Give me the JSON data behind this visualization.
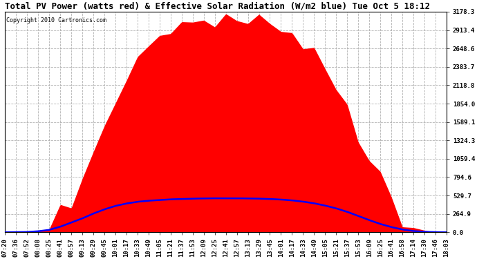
{
  "title": "Total PV Power (watts red) & Effective Solar Radiation (W/m2 blue) Tue Oct 5 18:12",
  "copyright_text": "Copyright 2010 Cartronics.com",
  "y_max": 3178.3,
  "y_ticks": [
    0.0,
    264.9,
    529.7,
    794.6,
    1059.4,
    1324.3,
    1589.1,
    1854.0,
    2118.8,
    2383.7,
    2648.6,
    2913.4,
    3178.3
  ],
  "x_labels": [
    "07:20",
    "07:36",
    "07:52",
    "08:08",
    "08:25",
    "08:41",
    "08:57",
    "09:13",
    "09:29",
    "09:45",
    "10:01",
    "10:17",
    "10:33",
    "10:49",
    "11:05",
    "11:21",
    "11:37",
    "11:53",
    "12:09",
    "12:25",
    "12:41",
    "12:57",
    "13:13",
    "13:29",
    "13:45",
    "14:01",
    "14:17",
    "14:33",
    "14:49",
    "15:05",
    "15:21",
    "15:37",
    "15:53",
    "16:09",
    "16:25",
    "16:41",
    "16:58",
    "17:14",
    "17:30",
    "17:46",
    "18:03"
  ],
  "pv_power": [
    0,
    5,
    10,
    20,
    50,
    150,
    350,
    700,
    1100,
    1500,
    1900,
    2200,
    2500,
    2700,
    2850,
    2950,
    3000,
    3020,
    3040,
    3050,
    3050,
    3040,
    3030,
    3020,
    3010,
    2980,
    2900,
    2780,
    2600,
    2380,
    2100,
    1780,
    1400,
    1000,
    650,
    350,
    150,
    60,
    20,
    5,
    0
  ],
  "solar_rad_scaled": [
    0,
    2,
    5,
    15,
    35,
    80,
    140,
    200,
    270,
    330,
    380,
    415,
    440,
    455,
    465,
    475,
    480,
    485,
    488,
    490,
    490,
    490,
    488,
    485,
    480,
    472,
    460,
    442,
    418,
    385,
    345,
    295,
    235,
    175,
    120,
    75,
    40,
    18,
    7,
    2,
    0
  ],
  "bg_color": "#ffffff",
  "plot_bg_color": "#ffffff",
  "red_color": "#ff0000",
  "blue_color": "#0000ff",
  "grid_color": "#aaaaaa",
  "title_fontsize": 9,
  "tick_fontsize": 6.5,
  "copyright_fontsize": 6
}
